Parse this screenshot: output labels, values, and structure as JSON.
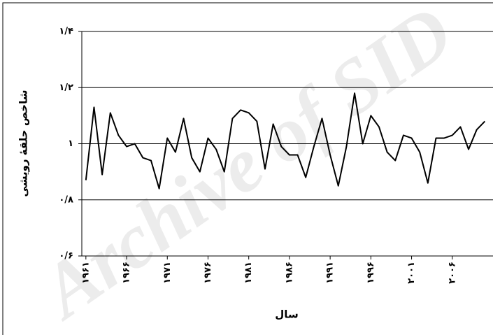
{
  "chart_data": {
    "type": "line",
    "watermark": "Archive of SID",
    "y_label": "شاخص حلقهٔ رویشی",
    "x_label": "سال",
    "x": [
      1961,
      1962,
      1963,
      1964,
      1965,
      1966,
      1967,
      1968,
      1969,
      1970,
      1971,
      1972,
      1973,
      1974,
      1975,
      1976,
      1977,
      1978,
      1979,
      1980,
      1981,
      1982,
      1983,
      1984,
      1985,
      1986,
      1987,
      1988,
      1989,
      1990,
      1991,
      1992,
      1993,
      1994,
      1995,
      1996,
      1997,
      1998,
      1999,
      2000,
      2001,
      2002,
      2003,
      2004,
      2005,
      2006,
      2007,
      2008,
      2009,
      2010
    ],
    "values": [
      0.87,
      1.13,
      0.89,
      1.11,
      1.03,
      0.99,
      1.0,
      0.95,
      0.94,
      0.84,
      1.02,
      0.97,
      1.09,
      0.95,
      0.9,
      1.02,
      0.98,
      0.9,
      1.09,
      1.12,
      1.11,
      1.08,
      0.91,
      1.07,
      0.99,
      0.96,
      0.96,
      0.88,
      0.99,
      1.09,
      0.96,
      0.85,
      0.99,
      1.18,
      1.0,
      1.1,
      1.06,
      0.97,
      0.94,
      1.03,
      1.02,
      0.97,
      0.86,
      1.02,
      1.02,
      1.03,
      1.06,
      0.98,
      1.05,
      1.08
    ],
    "color": "#000000",
    "xlim": [
      1960.5,
      2011
    ],
    "xticks": [
      {
        "value": 1961,
        "label": "۱۹۶۱"
      },
      {
        "value": 1966,
        "label": "۱۹۶۶"
      },
      {
        "value": 1971,
        "label": "۱۹۷۱"
      },
      {
        "value": 1976,
        "label": "۱۹۷۶"
      },
      {
        "value": 1981,
        "label": "۱۹۸۱"
      },
      {
        "value": 1986,
        "label": "۱۹۸۶"
      },
      {
        "value": 1991,
        "label": "۱۹۹۱"
      },
      {
        "value": 1996,
        "label": "۱۹۹۶"
      },
      {
        "value": 2001,
        "label": "۲۰۰۱"
      },
      {
        "value": 2006,
        "label": "۲۰۰۶"
      }
    ],
    "ylim": [
      0.6,
      1.4
    ],
    "yticks": [
      {
        "value": 0.6,
        "label": "۰/۶"
      },
      {
        "value": 0.8,
        "label": "۰/۸"
      },
      {
        "value": 1.0,
        "label": "۱"
      },
      {
        "value": 1.2,
        "label": "۱/۲"
      },
      {
        "value": 1.4,
        "label": "۱/۴"
      }
    ],
    "grid": true
  }
}
